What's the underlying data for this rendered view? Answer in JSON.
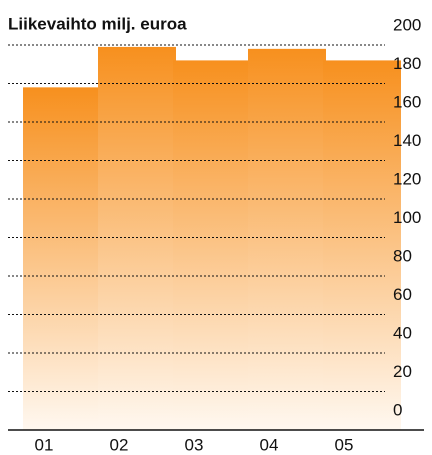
{
  "chart_data": {
    "type": "bar",
    "title": "Liikevaihto milj. euroa",
    "categories": [
      "01",
      "02",
      "03",
      "04",
      "05"
    ],
    "values": [
      178,
      199,
      192,
      198,
      192
    ],
    "color": "#f7901e",
    "ylim": [
      0,
      200
    ],
    "yticks": [
      0,
      20,
      40,
      60,
      80,
      100,
      120,
      140,
      160,
      180,
      200
    ],
    "grid": true
  }
}
